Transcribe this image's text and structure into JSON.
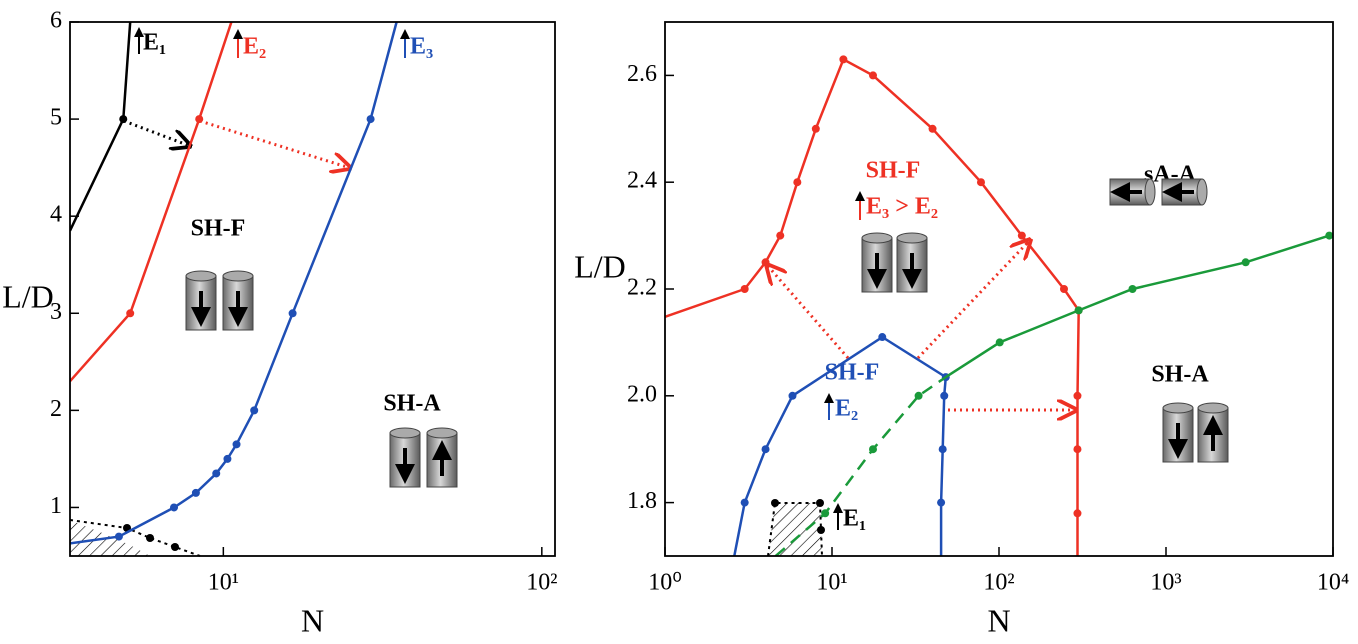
{
  "chart_data": [
    {
      "type": "line",
      "xscale": "log",
      "xlabel": "N",
      "ylabel": "L/D",
      "xlim": [
        3.3,
        110
      ],
      "ylim": [
        0.5,
        6
      ],
      "xticks": [
        {
          "value": 10,
          "label": "10¹"
        },
        {
          "value": 100,
          "label": "10²"
        }
      ],
      "yticks": [
        1,
        2,
        3,
        4,
        5,
        6
      ],
      "series": [
        {
          "color": "#000000",
          "markers": "inner",
          "x": [
            3.3,
            4.85,
            5.1
          ],
          "values": [
            3.85,
            5,
            6
          ]
        },
        {
          "color": "#ee3124",
          "markers": "inner",
          "x": [
            3.3,
            5.1,
            8.4,
            10.6
          ],
          "values": [
            2.3,
            3,
            5,
            6
          ]
        },
        {
          "color": "#1f4fb5",
          "markers": "inner",
          "x": [
            3.3,
            4.7,
            7,
            8.2,
            9.5,
            10.3,
            11,
            12.5,
            16.5,
            29,
            35
          ],
          "values": [
            0.63,
            0.7,
            1,
            1.15,
            1.35,
            1.5,
            1.65,
            2,
            3,
            5,
            6
          ]
        }
      ],
      "annotations": [
        "E₁",
        "E₂",
        "E₃",
        "SH-F",
        "SH-A"
      ]
    },
    {
      "type": "line",
      "xscale": "log",
      "xlabel": "N",
      "ylabel": "L/D",
      "xlim": [
        1,
        10000
      ],
      "ylim": [
        1.7,
        2.7
      ],
      "xticks": [
        {
          "value": 1,
          "label": "10⁰"
        },
        {
          "value": 10,
          "label": "10¹"
        },
        {
          "value": 100,
          "label": "10²"
        },
        {
          "value": 1000,
          "label": "10³"
        },
        {
          "value": 10000,
          "label": "10⁴"
        }
      ],
      "yticks": [
        1.8,
        {
          "value": 2,
          "label": "2.0"
        },
        2.2,
        2.4,
        2.6
      ],
      "series": [
        {
          "color": "#ee3124",
          "markers": "inner",
          "x": [
            1,
            3,
            4,
            4.9,
            6.2,
            8,
            11.7,
            17.6,
            40,
            78,
            137,
            245,
            300,
            295,
            295,
            295,
            295
          ],
          "values": [
            2.148,
            2.2,
            2.25,
            2.3,
            2.4,
            2.5,
            2.63,
            2.6,
            2.5,
            2.4,
            2.3,
            2.2,
            2.16,
            2.0,
            1.9,
            1.78,
            1.7
          ]
        },
        {
          "color": "#1f4fb5",
          "markers": "inner",
          "x": [
            2.6,
            3,
            4,
            5.8,
            20,
            48,
            47,
            46,
            45,
            45
          ],
          "values": [
            1.7,
            1.8,
            1.9,
            2.0,
            2.11,
            2.035,
            2.0,
            1.9,
            1.8,
            1.7
          ]
        },
        {
          "color": "#1a9a3a",
          "markers": "tail",
          "x": [
            48,
            101,
            300,
            630,
            3000,
            9500
          ],
          "values": [
            2.035,
            2.1,
            2.16,
            2.2,
            2.25,
            2.3
          ]
        },
        {
          "color": "#1a9a3a",
          "markers": "inner",
          "dashed": true,
          "x": [
            4.6,
            9.1,
            17.6,
            33,
            48
          ],
          "values": [
            1.7,
            1.78,
            1.9,
            2.0,
            2.035
          ]
        }
      ],
      "annotations": [
        "sA-A",
        "SH-F",
        "E₃ > E₂",
        "SH-F",
        "E₂",
        "SH-A",
        "E₁"
      ]
    }
  ]
}
